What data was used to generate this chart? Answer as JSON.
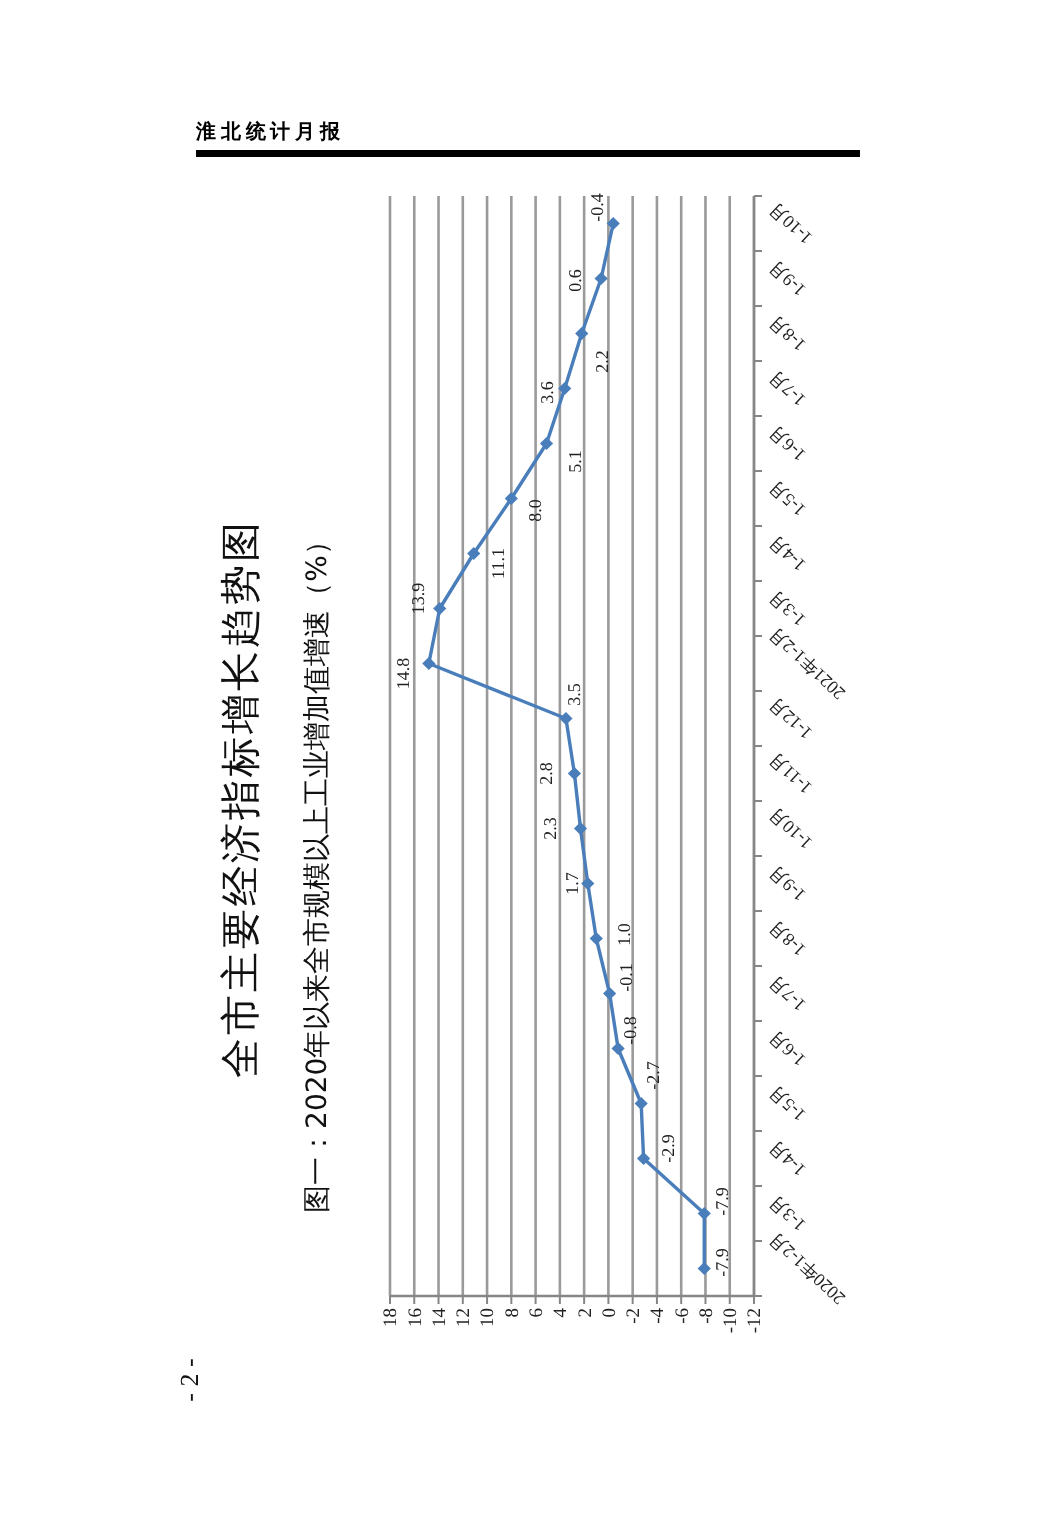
{
  "chart_data": {
    "type": "line",
    "orientation": "horizontal",
    "title": "全市主要经济指标增长趋势图",
    "subtitle": "图一：2020年以来全市规模以上工业增加值增速（%）",
    "categories": [
      "1-10月",
      "1-9月",
      "1-8月",
      "1-7月",
      "1-6月",
      "1-5月",
      "1-4月",
      "1-3月",
      "2021年1-2月",
      "1-12月",
      "1-11月",
      "1-10月",
      "1-9月",
      "1-8月",
      "1-7月",
      "1-6月",
      "1-5月",
      "1-4月",
      "1-3月",
      "2020年1-2月"
    ],
    "values": [
      -0.4,
      0.6,
      2.2,
      3.6,
      5.1,
      8.0,
      11.1,
      13.9,
      14.8,
      3.5,
      2.8,
      2.3,
      1.7,
      1.0,
      -0.1,
      -0.8,
      -2.7,
      -2.9,
      -7.9,
      -7.9
    ],
    "value_labels": [
      "-0.4",
      "0.6",
      "2.2",
      "3.6",
      "5.1",
      "8.0",
      "11.1",
      "13.9",
      "14.8",
      "3.5",
      "2.8",
      "2.3",
      "1.7",
      "1.0",
      "-0.1",
      "-0.8",
      "-2.7",
      "-2.9",
      "-7.9",
      "-7.9"
    ],
    "color": "#4a7ebb",
    "marker": "diamond",
    "line_style": "solid",
    "xlim": [
      18,
      -12
    ],
    "xticks": [
      18,
      16,
      14,
      12,
      10,
      8,
      6,
      4,
      2,
      0,
      -2,
      -4,
      -6,
      -8,
      -10,
      -12
    ],
    "grid": "x",
    "annotations": [
      "淮北统计月报",
      "- 2 -"
    ]
  }
}
